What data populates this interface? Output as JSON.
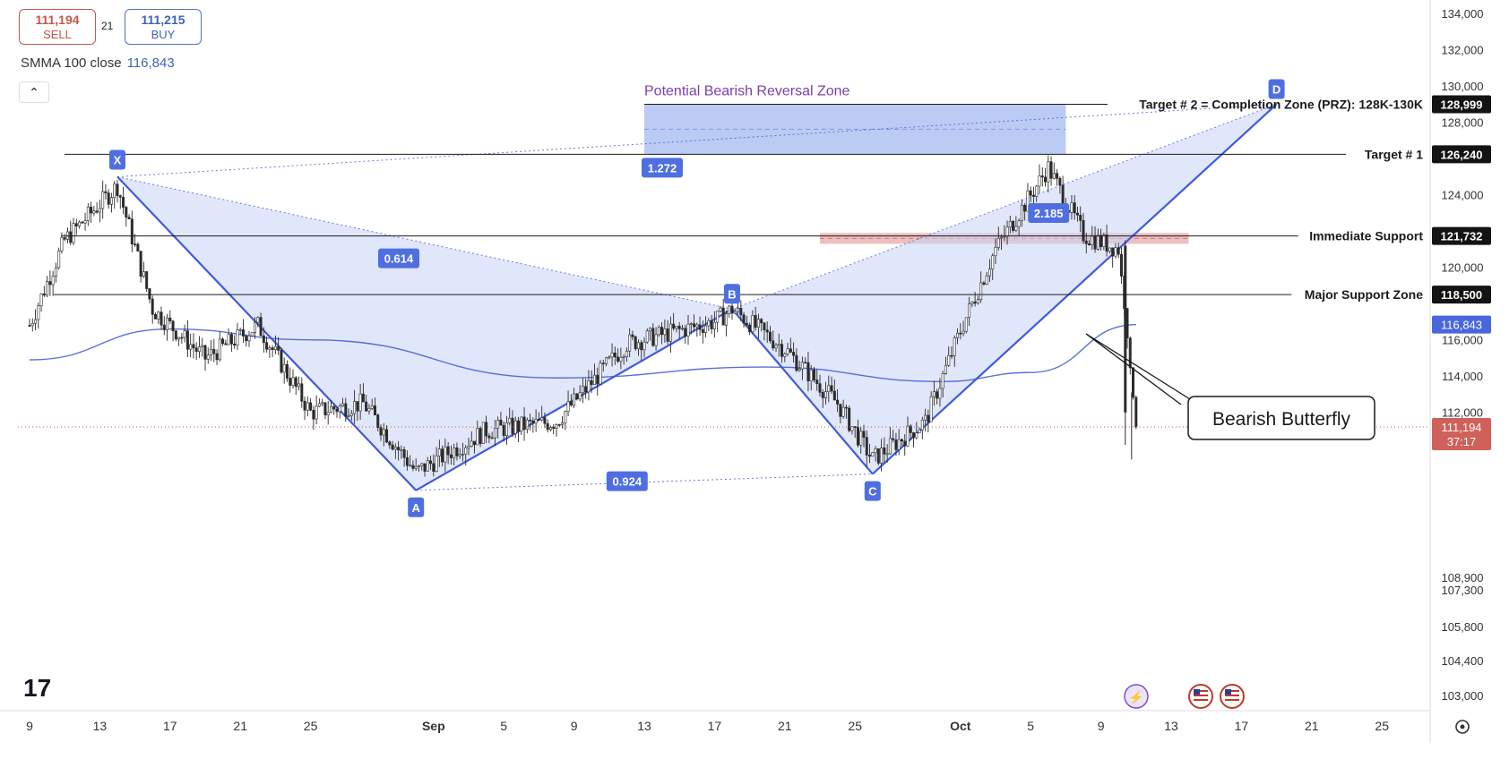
{
  "header": {
    "sell_price": "111,194",
    "sell_label": "SELL",
    "spread": "21",
    "buy_price": "111,215",
    "buy_label": "BUY",
    "indicator_label": "SMMA 100 close",
    "indicator_value": "116,843",
    "collapse_icon": "chevron-up-icon"
  },
  "colors": {
    "pattern_line": "#3f5bdc",
    "pattern_fill": "#c9d3f5",
    "prz_fill": "#9fb5f0",
    "support_zone": "#e8aaaa",
    "candle": "#2b2b2b",
    "smma": "#3b57d4",
    "sell_red": "#c7564f",
    "current_price_bg": "#d0605a"
  },
  "chart_data": {
    "type": "candlestick",
    "instrument_hint": "BTC price",
    "x_axis": {
      "tick_labels": [
        "9",
        "13",
        "17",
        "21",
        "25",
        "Sep",
        "5",
        "9",
        "13",
        "17",
        "21",
        "25",
        "Oct",
        "5",
        "9",
        "13",
        "17",
        "21",
        "25"
      ],
      "start_date": "2025-08-09",
      "end_date": "2025-10-27"
    },
    "y_axis": {
      "tick_labels": [
        "134,000",
        "132,000",
        "130,000",
        "128,000",
        "124,000",
        "120,000",
        "116,000",
        "114,000",
        "112,000",
        "108,900",
        "107,300",
        "105,800",
        "104,400",
        "103,000"
      ]
    },
    "approx_price_path": [
      {
        "date": "2025-08-09",
        "close": 116800
      },
      {
        "date": "2025-08-11",
        "close": 121500
      },
      {
        "date": "2025-08-14",
        "close": 124500
      },
      {
        "date": "2025-08-16",
        "close": 117700
      },
      {
        "date": "2025-08-19",
        "close": 115000
      },
      {
        "date": "2025-08-22",
        "close": 116800
      },
      {
        "date": "2025-08-25",
        "close": 112000
      },
      {
        "date": "2025-08-28",
        "close": 112500
      },
      {
        "date": "2025-08-31",
        "close": 108700
      },
      {
        "date": "2025-09-04",
        "close": 111000
      },
      {
        "date": "2025-09-08",
        "close": 111500
      },
      {
        "date": "2025-09-12",
        "close": 115800
      },
      {
        "date": "2025-09-17",
        "close": 117000
      },
      {
        "date": "2025-09-18",
        "close": 117700
      },
      {
        "date": "2025-09-21",
        "close": 115500
      },
      {
        "date": "2025-09-24",
        "close": 112500
      },
      {
        "date": "2025-09-26",
        "close": 109400
      },
      {
        "date": "2025-09-29",
        "close": 111500
      },
      {
        "date": "2025-10-01",
        "close": 116500
      },
      {
        "date": "2025-10-03",
        "close": 121000
      },
      {
        "date": "2025-10-06",
        "close": 125500
      },
      {
        "date": "2025-10-08",
        "close": 121800
      },
      {
        "date": "2025-10-10",
        "close": 121000
      },
      {
        "date": "2025-10-11",
        "close": 111194
      }
    ],
    "smma_100": [
      {
        "date": "2025-08-09",
        "value": 114900
      },
      {
        "date": "2025-08-17",
        "value": 116600
      },
      {
        "date": "2025-08-25",
        "value": 116000
      },
      {
        "date": "2025-09-08",
        "value": 113900
      },
      {
        "date": "2025-09-20",
        "value": 114500
      },
      {
        "date": "2025-09-30",
        "value": 113700
      },
      {
        "date": "2025-10-05",
        "value": 114200
      },
      {
        "date": "2025-10-11",
        "value": 116843
      }
    ],
    "harmonic_pattern": {
      "name": "Bearish Butterfly",
      "points": [
        {
          "label": "X",
          "date": "2025-08-14",
          "price": 125000
        },
        {
          "label": "A",
          "date": "2025-08-31",
          "price": 107700
        },
        {
          "label": "B",
          "date": "2025-09-18",
          "price": 117700
        },
        {
          "label": "C",
          "date": "2025-09-26",
          "price": 108600
        },
        {
          "label": "D",
          "date": "2025-10-19",
          "price": 128999
        }
      ],
      "ratios": [
        {
          "label": "0.614",
          "date": "2025-08-29",
          "price": 120500
        },
        {
          "label": "0.924",
          "date": "2025-09-11",
          "price": 108200
        },
        {
          "label": "1.272",
          "date": "2025-09-13",
          "price": 125500
        },
        {
          "label": "2.185",
          "date": "2025-10-05",
          "price": 123000
        }
      ]
    },
    "levels": [
      {
        "name": "Target # 2 = Completion Zone (PRZ): 128K-130K",
        "value": "128,999",
        "price": 128999
      },
      {
        "name": "Target # 1",
        "value": "126,240",
        "price": 126240
      },
      {
        "name": "Immediate Support",
        "value": "121,732",
        "price": 121732
      },
      {
        "name": "Major Support Zone",
        "value": "118,500",
        "price": 118500
      }
    ],
    "prz_zone": {
      "label": "Potential Bearish Reversal Zone",
      "from_date": "2025-09-13",
      "to_date": "2025-10-07",
      "low": 126240,
      "high": 128999
    },
    "support_zone": {
      "from_date": "2025-09-23",
      "to_date": "2025-10-14",
      "low": 121300,
      "high": 121900
    },
    "annotation": "Bearish Butterfly",
    "price_labels": {
      "smma": "116,843",
      "current": "111,194",
      "countdown": "37:17"
    }
  }
}
